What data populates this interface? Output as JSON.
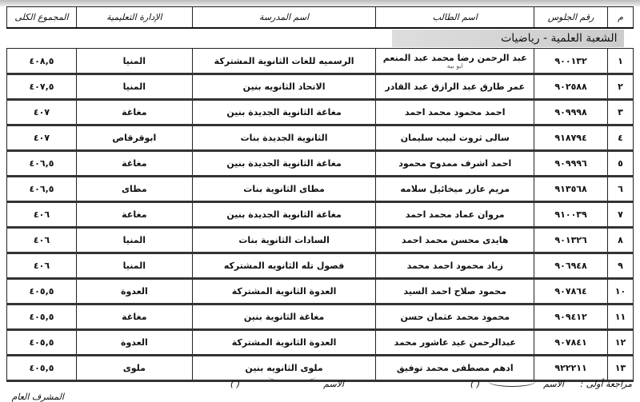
{
  "headers": {
    "m": "م",
    "seat": "رقم الجلوس",
    "name": "اسم الطالب",
    "school": "اسم المدرسة",
    "admin": "الإدارة التعليمية",
    "total": "المجموع الكلى"
  },
  "section": "الشعبة العلمية - رياضيات",
  "rows": [
    {
      "m": "١",
      "seat": "٩٠٠١٣٢",
      "name": "عبد الرحمن رضا محمد عبد المنعم",
      "name_line2": "ابو بيه",
      "school": "الرسميه للغات الثانوية المشتركة",
      "admin": "المنيا",
      "total": "٤٠٨,٥"
    },
    {
      "m": "٢",
      "seat": "٩٠٢٥٨٨",
      "name": "عمر طارق عبد الرازق عبد القادر",
      "school": "الاتحاد الثانويه بنين",
      "admin": "المنيا",
      "total": "٤٠٧,٥"
    },
    {
      "m": "٣",
      "seat": "٩٠٩٩٩٨",
      "name": "احمد محمود محمد احمد",
      "school": "مغاغة الثانوية الجديدة بنين",
      "admin": "مغاغة",
      "total": "٤٠٧"
    },
    {
      "m": "٤",
      "seat": "٩١٨٧٩٤",
      "name": "سالى ثروت لبيب سليمان",
      "school": "الثانوية الجديدة بنات",
      "admin": "ابوقرقاص",
      "total": "٤٠٧"
    },
    {
      "m": "٥",
      "seat": "٩٠٩٩٩٦",
      "name": "احمد اشرف ممدوح محمود",
      "school": "مغاغة الثانوية الجديدة بنين",
      "admin": "مغاغة",
      "total": "٤٠٦,٥"
    },
    {
      "m": "٦",
      "seat": "٩١٣٥٦٨",
      "name": "مريم عازر ميخائيل سلامه",
      "school": "مطاى الثانوية  بنات",
      "admin": "مطاى",
      "total": "٤٠٦,٥"
    },
    {
      "m": "٧",
      "seat": "٩١٠٠٣٩",
      "name": "مروان عماد محمد احمد",
      "school": "مغاغة الثانوية الجديدة بنين",
      "admin": "مغاغة",
      "total": "٤٠٦"
    },
    {
      "m": "٨",
      "seat": "٩٠١٣٢٦",
      "name": "هايدى محسن محمد احمد",
      "school": "السادات الثانوية بنات",
      "admin": "المنيا",
      "total": "٤٠٦"
    },
    {
      "m": "٩",
      "seat": "٩٠٦٩٤٨",
      "name": "زياد محمود احمد محمد",
      "school": "فصول تله الثانويه المشتركه",
      "admin": "المنيا",
      "total": "٤٠٦"
    },
    {
      "m": "١٠",
      "seat": "٩٠٧٨٦٤",
      "name": "محمود صلاح احمد السيد",
      "school": "العدوة الثانوية المشتركة",
      "admin": "العدوة",
      "total": "٤٠٥,٥"
    },
    {
      "m": "١١",
      "seat": "٩٠٩٤١٢",
      "name": "محمود محمد عثمان حسن",
      "school": "مغاغة الثانوية بنين",
      "admin": "مغاغة",
      "total": "٤٠٥,٥"
    },
    {
      "m": "١٢",
      "seat": "٩٠٧٨٤١",
      "name": "عبدالرحمن عيد عاشور محمد",
      "school": "العدوة الثانوية المشتركة",
      "admin": "العدوة",
      "total": "٤٠٥,٥"
    },
    {
      "m": "١٣",
      "seat": "٩٢٢٢١١",
      "name": "ادهم مصطفى محمد توفيق",
      "school": "ملوى الثانويه بنين",
      "admin": "ملوى",
      "total": "٤٠٥,٥"
    }
  ],
  "footer": {
    "review": "مراجعة أولى :",
    "name_label": "الاسم",
    "name_label2": "الاسم",
    "paren1": "(        )",
    "paren2": "(        )",
    "supervisor": "المشرف العام"
  }
}
